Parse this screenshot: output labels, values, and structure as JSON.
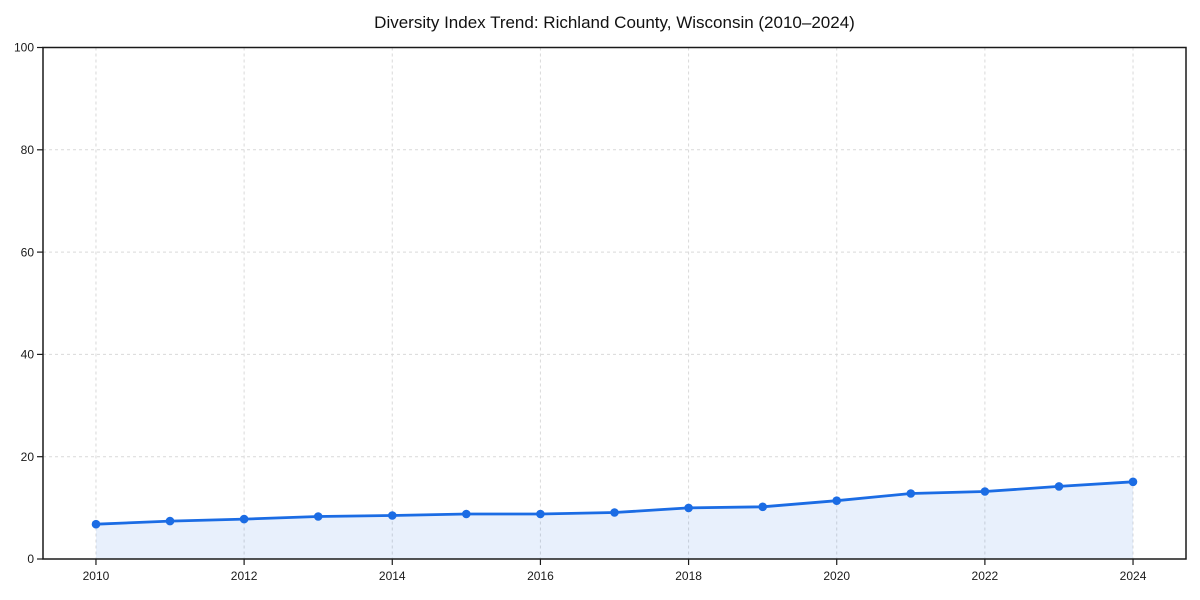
{
  "chart_data": {
    "type": "line",
    "title": "Diversity Index Trend: Richland County, Wisconsin (2010–2024)",
    "xlabel": "",
    "ylabel": "",
    "x": [
      2010,
      2011,
      2012,
      2013,
      2014,
      2015,
      2016,
      2017,
      2018,
      2019,
      2020,
      2021,
      2022,
      2023,
      2024
    ],
    "series": [
      {
        "name": "Diversity Index",
        "values": [
          6.8,
          7.4,
          7.8,
          8.3,
          8.5,
          8.8,
          8.8,
          9.1,
          10.0,
          10.2,
          11.4,
          12.8,
          13.2,
          14.2,
          15.1
        ]
      }
    ],
    "xticks": [
      2010,
      2012,
      2014,
      2016,
      2018,
      2020,
      2022,
      2024
    ],
    "yticks": [
      0,
      20,
      40,
      60,
      80,
      100
    ],
    "xlim": [
      2009.285,
      2024.715
    ],
    "ylim": [
      0,
      100
    ],
    "grid": true,
    "grid_style": "dashed",
    "legend": "none",
    "marker": "circle",
    "area_fill": true,
    "colors": {
      "line": "#1b6ce4",
      "fill": "rgba(27,108,228,0.10)",
      "grid": "#d9d9d9",
      "axis": "#1a1a1a",
      "title_text": "#111111",
      "tick_text": "#1a1a1a",
      "background": "#ffffff"
    }
  }
}
